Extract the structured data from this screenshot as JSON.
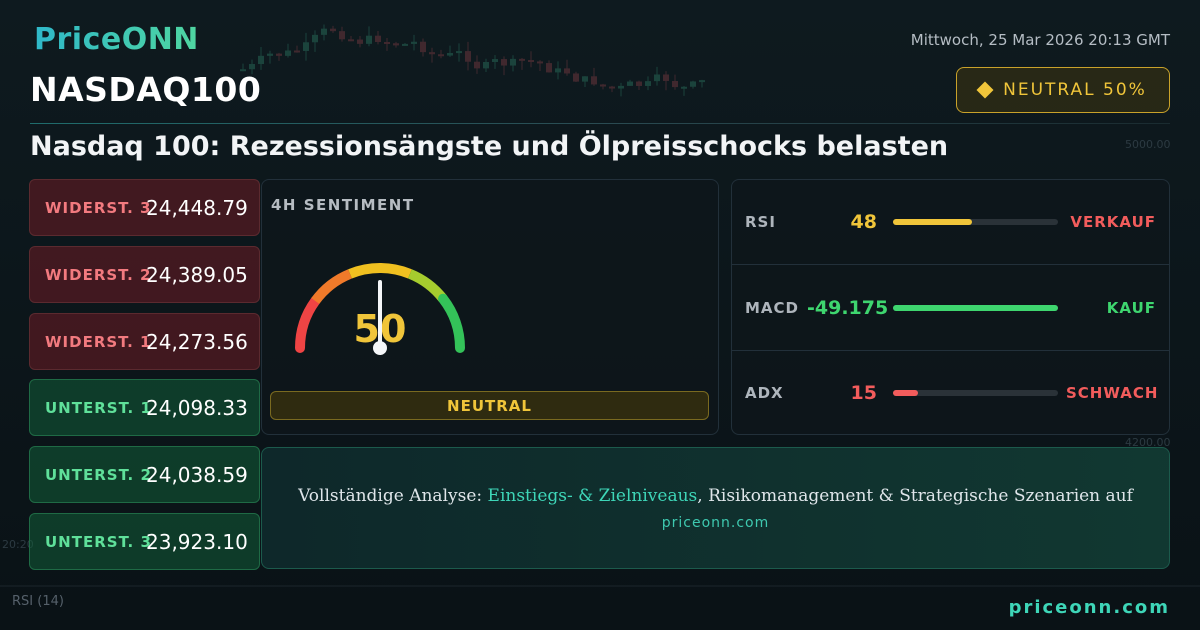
{
  "brand": {
    "logo": "PriceONN",
    "footer_url": "priceonn.com"
  },
  "header": {
    "datetime": "Mittwoch, 25 Mar 2026 20:13 GMT",
    "ticker": "NASDAQ100",
    "badge": {
      "label": "NEUTRAL 50%",
      "icon": "diamond-icon",
      "color": "#f0c53a"
    },
    "headline": "Nasdaq 100: Rezessionsängste und Ölpreisschocks belasten"
  },
  "levels": [
    {
      "label": "WIDERST. 3",
      "value": "24,448.79",
      "kind": "resistance"
    },
    {
      "label": "WIDERST. 2",
      "value": "24,389.05",
      "kind": "resistance"
    },
    {
      "label": "WIDERST. 1",
      "value": "24,273.56",
      "kind": "resistance"
    },
    {
      "label": "UNTERST. 1",
      "value": "24,098.33",
      "kind": "support"
    },
    {
      "label": "UNTERST. 2",
      "value": "24,038.59",
      "kind": "support"
    },
    {
      "label": "UNTERST. 3",
      "value": "23,923.10",
      "kind": "support"
    }
  ],
  "sentiment": {
    "title": "4H SENTIMENT",
    "value": "50",
    "level": 0.5,
    "label": "NEUTRAL",
    "color": "#f0c53a"
  },
  "indicators": [
    {
      "name": "RSI",
      "value": "48",
      "signal": "VERKAUF",
      "level": 0.48,
      "value_color": "#f0c53a",
      "bar_color": "#f0c53a",
      "signal_color": "#f25c5c"
    },
    {
      "name": "MACD",
      "value": "-49.175",
      "signal": "KAUF",
      "level": 1.0,
      "value_color": "#3ed66f",
      "bar_color": "#3ed66f",
      "signal_color": "#3ed66f"
    },
    {
      "name": "ADX",
      "value": "15",
      "signal": "SCHWACH",
      "level": 0.15,
      "value_color": "#f25c5c",
      "bar_color": "#f25c5c",
      "signal_color": "#f25c5c"
    }
  ],
  "cta": {
    "prefix": "Vollständige Analyse: ",
    "highlight": "Einstiegs- & Zielniveaus",
    "suffix": ", Risikomanagement & Strategische Szenarien auf",
    "url": "priceonn.com"
  },
  "background": {
    "axis_labels": [
      "5000.00",
      "4200.00",
      "20:20"
    ],
    "rsi_label": "RSI",
    "rsi_period": "(14)"
  }
}
